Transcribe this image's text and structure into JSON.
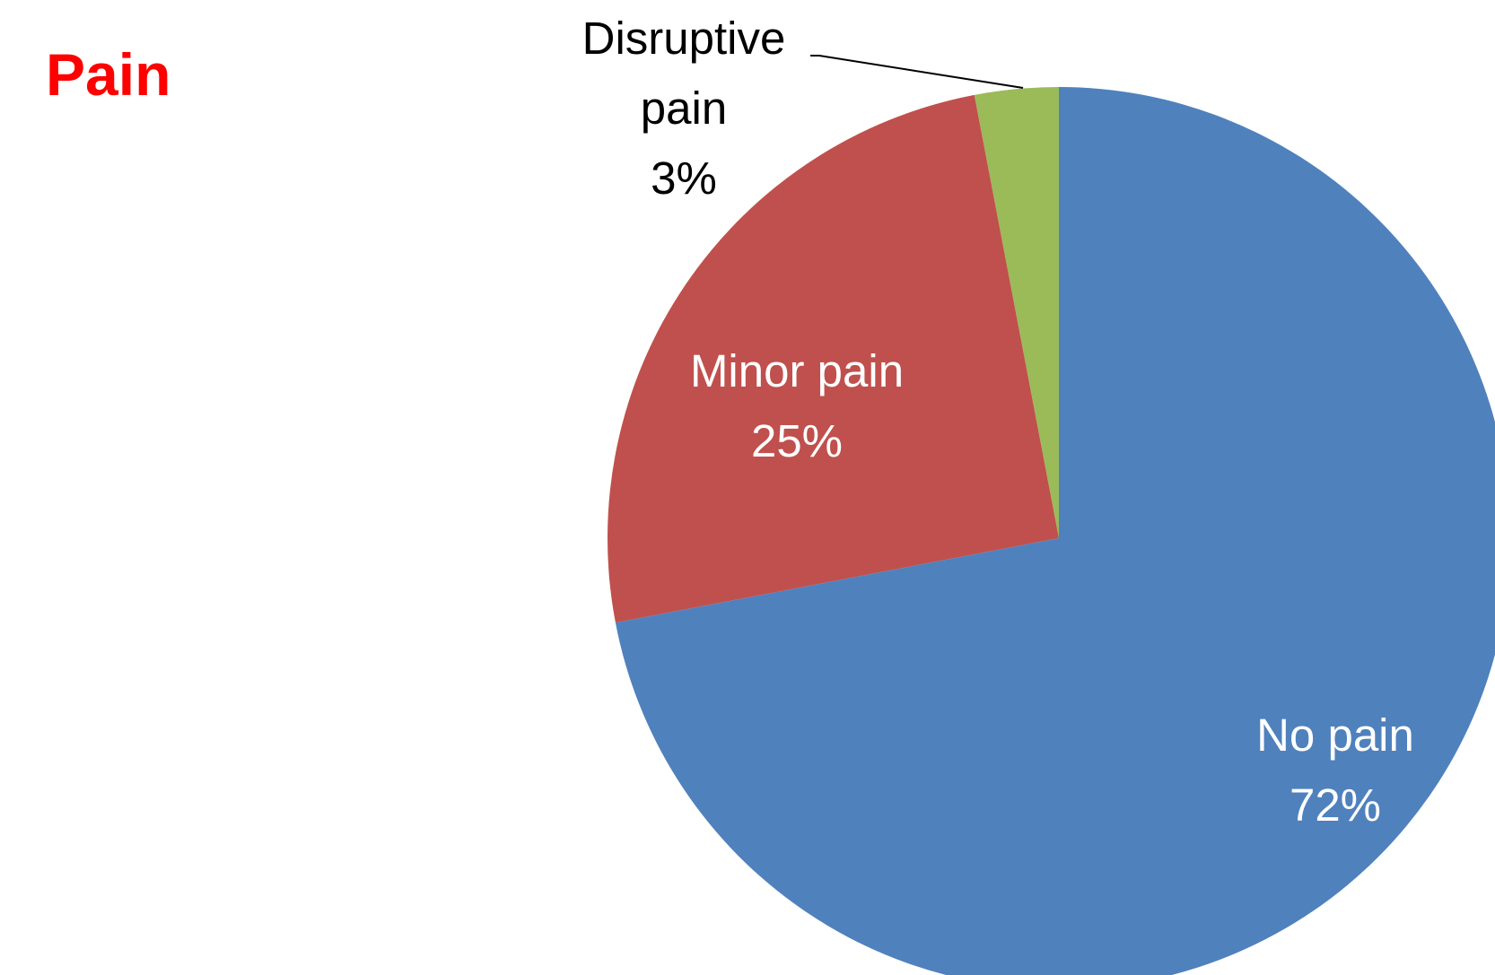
{
  "chart_data": {
    "type": "pie",
    "title": "Pain",
    "categories": [
      "No pain",
      "Minor pain",
      "Disruptive pain"
    ],
    "values": [
      72,
      25,
      3
    ],
    "value_labels": [
      "72%",
      "25%",
      "3%"
    ],
    "colors": [
      "#4f81bd",
      "#c0504d",
      "#9bbb59"
    ]
  }
}
